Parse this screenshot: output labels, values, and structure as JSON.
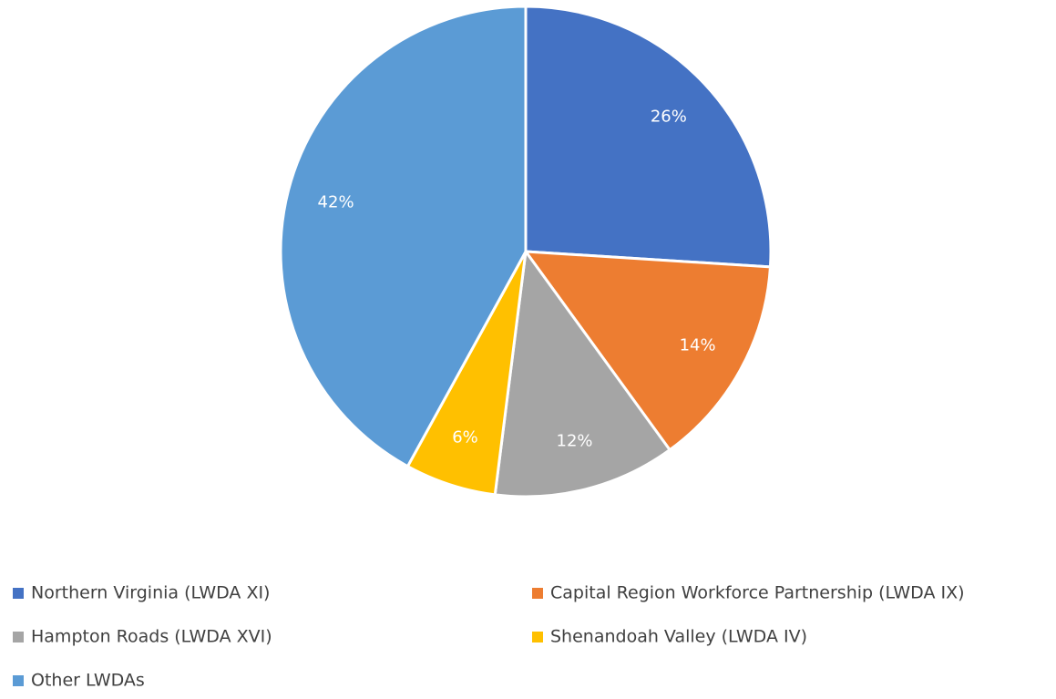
{
  "chart_data": {
    "type": "pie",
    "categories": [
      "Northern Virginia (LWDA XI)",
      "Capital Region Workforce Partnership (LWDA IX)",
      "Hampton Roads (LWDA XVI)",
      "Shenandoah Valley (LWDA IV)",
      "Other LWDAs"
    ],
    "values": [
      26,
      14,
      12,
      6,
      42
    ],
    "value_labels": [
      "26%",
      "14%",
      "12%",
      "6%",
      "42%"
    ],
    "colors": [
      "#4472c4",
      "#ed7d31",
      "#a5a5a5",
      "#ffc000",
      "#5b9bd5"
    ],
    "legend": "bottom"
  }
}
